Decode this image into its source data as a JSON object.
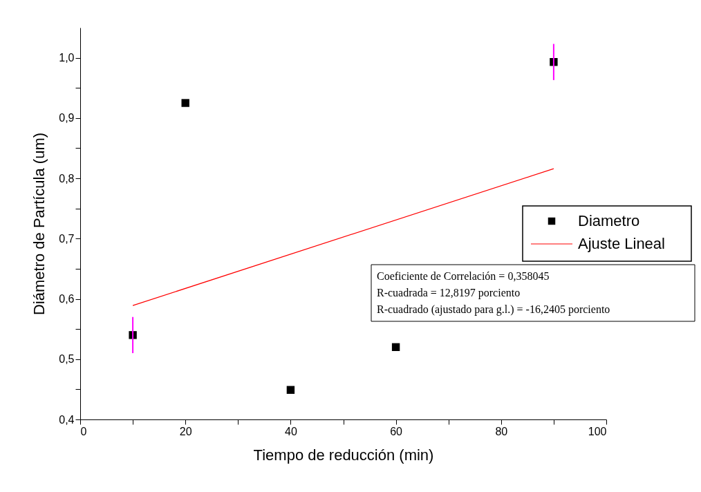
{
  "chart_data": {
    "type": "scatter",
    "xlabel": "Tiempo de reducción (min)",
    "ylabel": "Diámetro de Partícula (um)",
    "xlim": [
      0,
      100
    ],
    "xticks": [
      0,
      {
        "value": 10,
        "label": null
      },
      20,
      {
        "value": 30,
        "label": null
      },
      40,
      {
        "value": 50,
        "label": null
      },
      60,
      {
        "value": 70,
        "label": null
      },
      80,
      {
        "value": 90,
        "label": null
      },
      100
    ],
    "ylim": [
      0.4,
      1.05
    ],
    "yticks": [
      {
        "value": 0.4,
        "label": "0,4"
      },
      {
        "value": 0.45,
        "label": null
      },
      {
        "value": 0.5,
        "label": "0,5"
      },
      {
        "value": 0.55,
        "label": null
      },
      {
        "value": 0.6,
        "label": "0,6"
      },
      {
        "value": 0.65,
        "label": null
      },
      {
        "value": 0.7,
        "label": "0,7"
      },
      {
        "value": 0.75,
        "label": null
      },
      {
        "value": 0.8,
        "label": "0,8"
      },
      {
        "value": 0.85,
        "label": null
      },
      {
        "value": 0.9,
        "label": "0,9"
      },
      {
        "value": 0.95,
        "label": null
      },
      {
        "value": 1.0,
        "label": "1,0"
      }
    ],
    "grid": false,
    "legend": "right",
    "series": [
      {
        "name": "Diametro",
        "marker": "square",
        "color": "#000000",
        "x": [
          10,
          20,
          40,
          60,
          90
        ],
        "values": [
          0.54,
          0.925,
          0.449,
          0.52,
          0.993
        ],
        "errors": [
          0.03,
          null,
          null,
          null,
          0.03
        ]
      },
      {
        "name": "Ajuste Lineal",
        "type": "line",
        "marker": "none",
        "color": "#ff0000",
        "x": [
          10,
          90
        ],
        "values": [
          0.589,
          0.816
        ]
      }
    ],
    "annotations": [
      "Coeficiente de Correlación = 0,358045",
      "R-cuadrada = 12,8197 porciento",
      "R-cuadrado (ajustado para g.l.) = -16,2405 porciento"
    ]
  }
}
